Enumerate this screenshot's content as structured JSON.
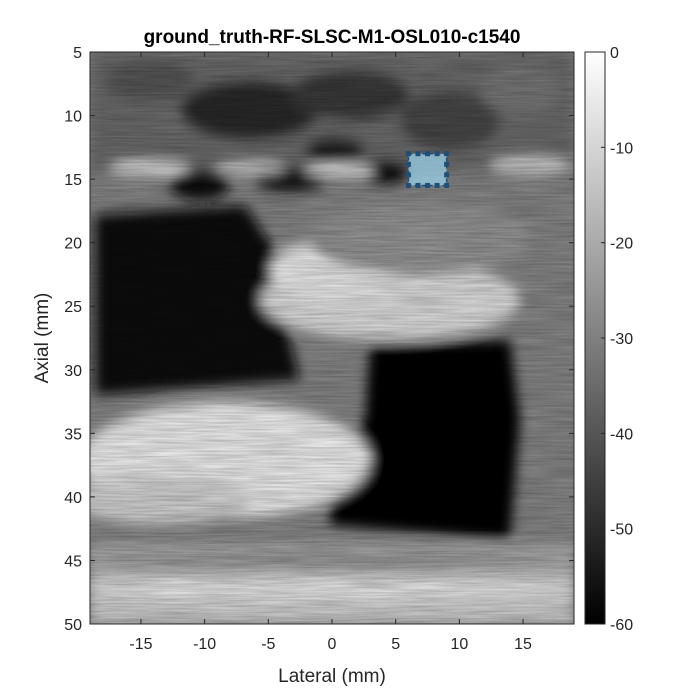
{
  "figure": {
    "title": "ground_truth-RF-SLSC-M1-OSL010-c1540",
    "xlabel": "Lateral (mm)",
    "ylabel": "Axial (mm)"
  },
  "colors": {
    "roi_fill": "#9ad1ea",
    "roi_edge": "#1f4f79",
    "axis": "#262626"
  },
  "chart_data": {
    "type": "heatmap",
    "title": "ground_truth-RF-SLSC-M1-OSL010-c1540",
    "xlabel": "Lateral (mm)",
    "ylabel": "Axial (mm)",
    "xlim": [
      -19,
      19
    ],
    "ylim": [
      5,
      50
    ],
    "y_reversed": true,
    "colormap": "gray",
    "xticks": [
      -15,
      -10,
      -5,
      0,
      5,
      10,
      15
    ],
    "yticks": [
      5,
      10,
      15,
      20,
      25,
      30,
      35,
      40,
      45,
      50
    ],
    "colorbar": {
      "range": [
        -60,
        0
      ],
      "ticks": [
        0,
        -10,
        -20,
        -30,
        -40,
        -50,
        -60
      ]
    },
    "roi": {
      "x": [
        6,
        9
      ],
      "y": [
        13,
        15.5
      ]
    }
  }
}
